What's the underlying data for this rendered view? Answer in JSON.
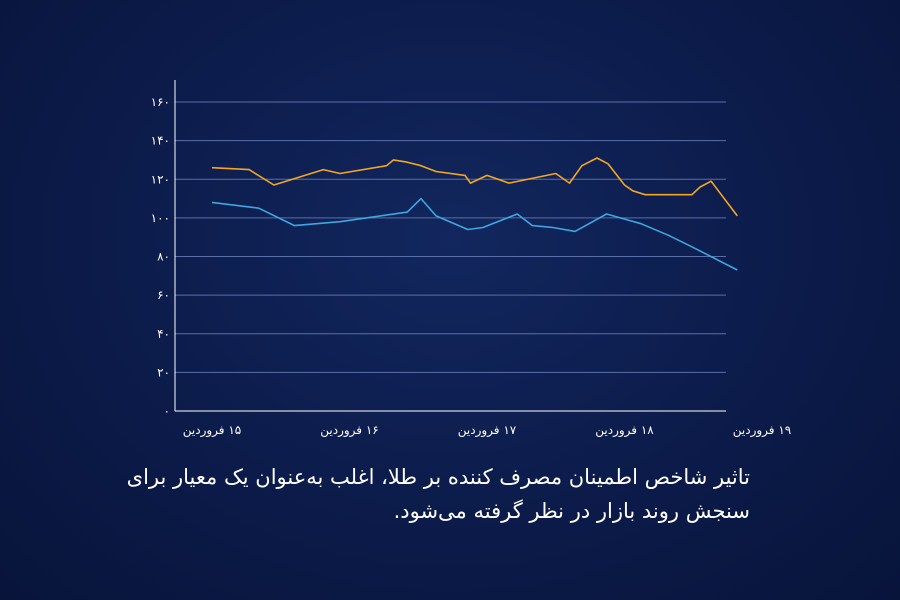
{
  "chart_data": {
    "type": "line",
    "title": "",
    "xlabel": "",
    "ylabel": "",
    "ylim": [
      0,
      160
    ],
    "yticks": [
      0,
      20,
      40,
      60,
      80,
      100,
      120,
      140,
      160
    ],
    "ytick_labels": [
      "۰",
      "۲۰",
      "۴۰",
      "۶۰",
      "۸۰",
      "۱۰۰",
      "۱۲۰",
      "۱۴۰",
      "۱۶۰"
    ],
    "xlim": [
      0,
      4
    ],
    "xticks": [
      0,
      1,
      2,
      3,
      4
    ],
    "xtick_labels": [
      "۱۵ فروردین",
      "۱۶ فروردین",
      "۱۷ فروردین",
      "۱۸ فروردین",
      "۱۹ فروردین"
    ],
    "grid": true,
    "series": [
      {
        "color": "#f5a623",
        "x": [
          0,
          0.27,
          0.45,
          0.81,
          0.93,
          1.27,
          1.32,
          1.41,
          1.52,
          1.63,
          1.84,
          1.88,
          2.0,
          2.16,
          2.5,
          2.6,
          2.69,
          2.8,
          2.88,
          3.0,
          3.06,
          3.15,
          3.49,
          3.55,
          3.63,
          3.82
        ],
        "y": [
          126,
          125,
          117,
          125,
          123,
          127,
          130,
          129,
          127,
          124,
          122,
          118,
          122,
          118,
          123,
          118,
          127,
          131,
          128,
          117,
          114,
          112,
          112,
          116,
          119,
          101
        ]
      },
      {
        "color": "#3ea7e0",
        "x": [
          0,
          0.34,
          0.6,
          0.93,
          1.42,
          1.52,
          1.63,
          1.86,
          1.97,
          2.22,
          2.33,
          2.48,
          2.64,
          2.87,
          3.12,
          3.32,
          3.49,
          3.82
        ],
        "y": [
          108,
          105,
          96,
          98,
          103,
          110,
          101,
          94,
          95,
          102,
          96,
          95,
          93,
          102,
          97,
          91,
          85,
          73
        ]
      }
    ]
  },
  "caption": {
    "text": "تاثیر شاخص اطمینان مصرف کننده بر طلا، اغلب به‌عنوان یک معیار برای سنجش روند بازار در نظر گرفته می‌شود."
  }
}
